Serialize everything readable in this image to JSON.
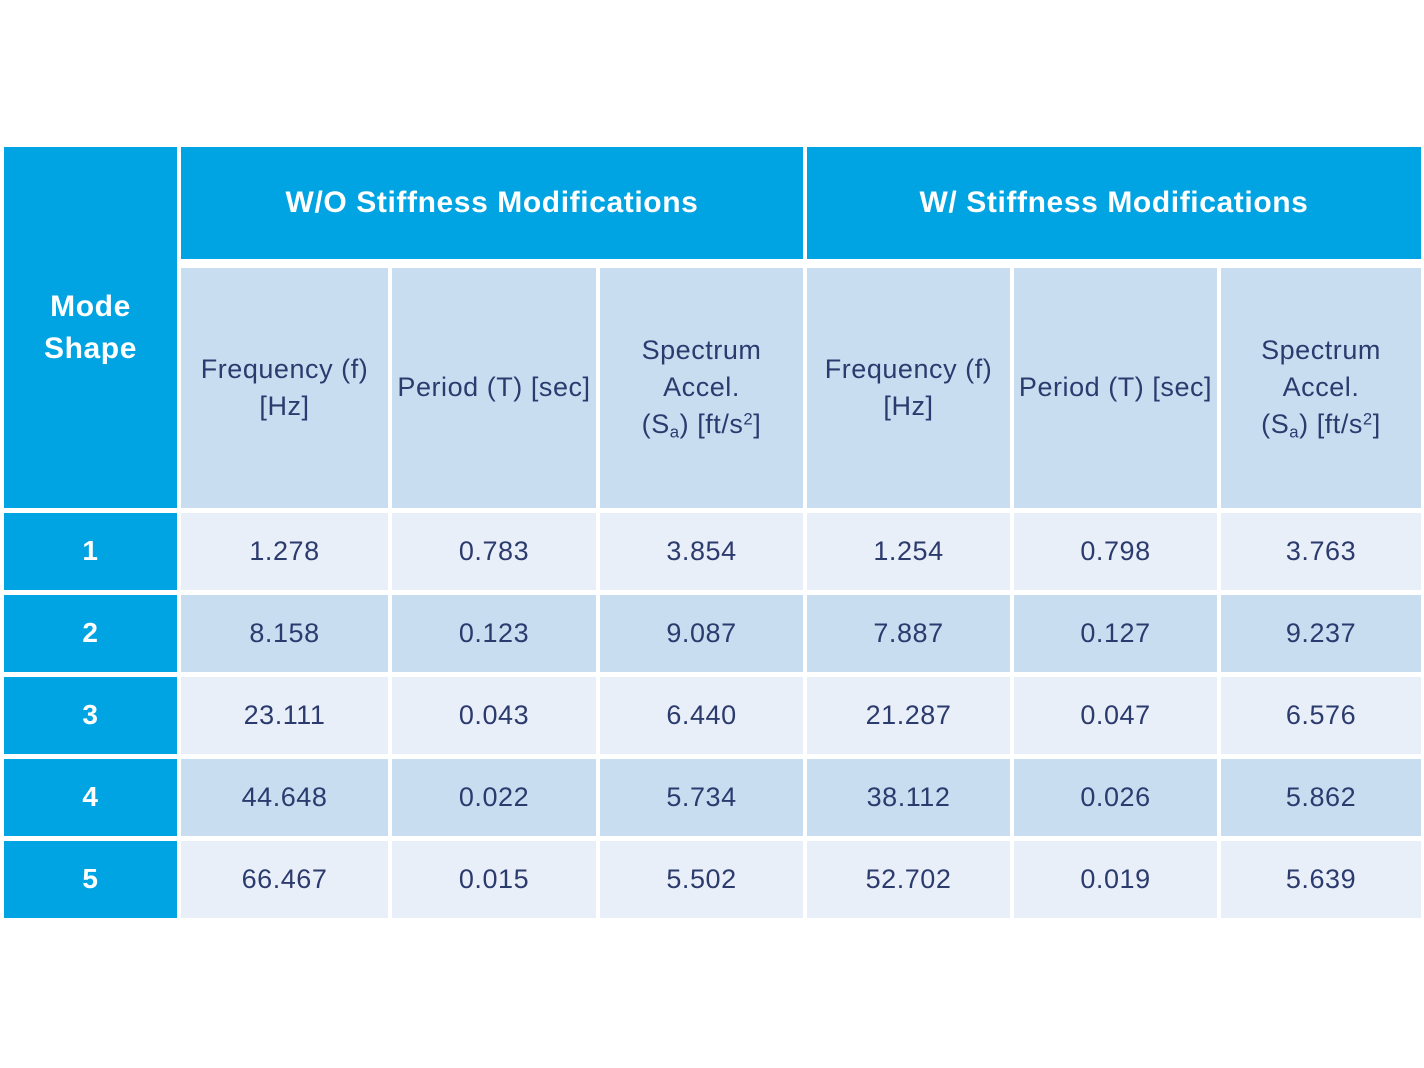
{
  "colors": {
    "accent_cyan": "#00A4E2",
    "band_blue": "#C9DDF1",
    "row_light_blue": "#E9EFF8",
    "text_navy": "#2C3B6E",
    "text_white": "#FFFFFF",
    "page_background": "#FFFFFF"
  },
  "table": {
    "corner": {
      "line1": "Mode",
      "line2": "Shape"
    },
    "group_headers": [
      {
        "label": "W/O Stiffness Modifications"
      },
      {
        "label": "W/ Stiffness Modifications"
      }
    ],
    "column_headers": {
      "frequency": {
        "line1": "Frequency (f)",
        "line2": "[Hz]"
      },
      "period": {
        "line1": "Period (T) [sec]"
      },
      "spectrum": {
        "line1": "Spectrum Accel.",
        "l2_pre": "(S",
        "l2_sub": "a",
        "l2_mid": ") [ft/s",
        "l2_sup": "2",
        "l2_post": "]"
      }
    },
    "rows": [
      {
        "mode": "1",
        "values": [
          "1.278",
          "0.783",
          "3.854",
          "1.254",
          "0.798",
          "3.763"
        ]
      },
      {
        "mode": "2",
        "values": [
          "8.158",
          "0.123",
          "9.087",
          "7.887",
          "0.127",
          "9.237"
        ]
      },
      {
        "mode": "3",
        "values": [
          "23.111",
          "0.043",
          "6.440",
          "21.287",
          "0.047",
          "6.576"
        ]
      },
      {
        "mode": "4",
        "values": [
          "44.648",
          "0.022",
          "5.734",
          "38.112",
          "0.026",
          "5.862"
        ]
      },
      {
        "mode": "5",
        "values": [
          "66.467",
          "0.015",
          "5.502",
          "52.702",
          "0.019",
          "5.639"
        ]
      }
    ]
  }
}
